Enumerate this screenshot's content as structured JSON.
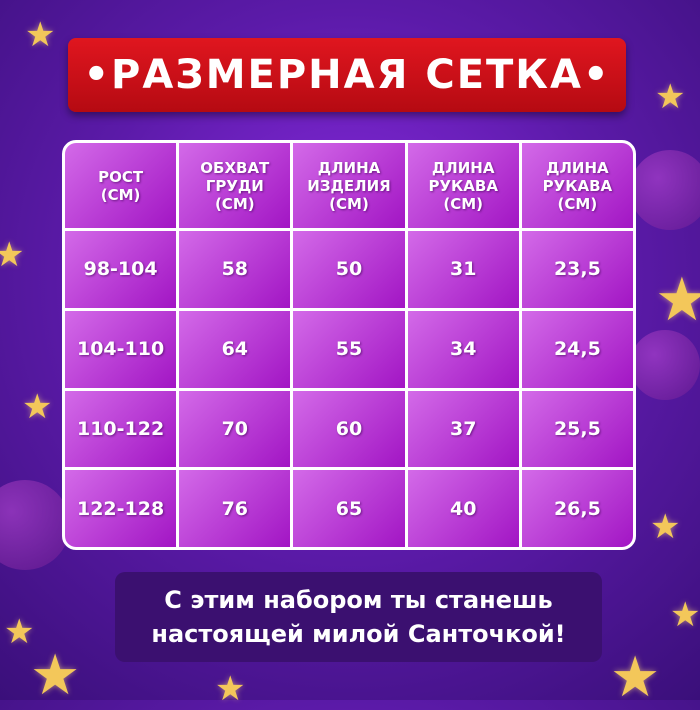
{
  "title": "•РАЗМЕРНАЯ СЕТКА•",
  "table": {
    "headers": [
      "РОСТ\n(СМ)",
      "ОБХВАТ\nГРУДИ\n(СМ)",
      "ДЛИНА\nИЗДЕЛИЯ\n(СМ)",
      "ДЛИНА\nРУКАВА\n(СМ)",
      "ДЛИНА\nРУКАВА\n(СМ)"
    ],
    "rows": [
      [
        "98-104",
        "58",
        "50",
        "31",
        "23,5"
      ],
      [
        "104-110",
        "64",
        "55",
        "34",
        "24,5"
      ],
      [
        "110-122",
        "70",
        "60",
        "37",
        "25,5"
      ],
      [
        "122-128",
        "76",
        "65",
        "40",
        "26,5"
      ]
    ]
  },
  "footer": {
    "line1": "С этим набором ты станешь",
    "line2": "настоящей милой Санточкой!"
  },
  "colors": {
    "title_bg": "#d0121b",
    "cell": "#b930d6",
    "footer_bg": "#3b1070",
    "star": "#f3c75a"
  }
}
